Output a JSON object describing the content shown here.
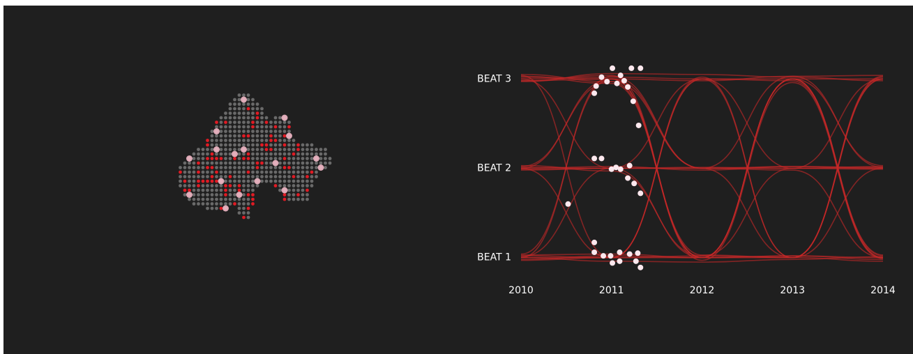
{
  "chart_data": {
    "type": "line",
    "x": [
      2010,
      2011,
      2012,
      2013,
      2014
    ],
    "xlim": [
      2010,
      2014
    ],
    "xticks": [
      2010,
      2011,
      2012,
      2013,
      2014
    ],
    "ylim": [
      0.6,
      3.4
    ],
    "yticks": [
      {
        "value": 1,
        "label": "BEAT 1"
      },
      {
        "value": 2,
        "label": "BEAT 2"
      },
      {
        "value": 3,
        "label": "BEAT 3"
      }
    ],
    "line_color": "#c62828",
    "series": [
      {
        "values": [
          3.02,
          3.0,
          1.0,
          3.0,
          1.02
        ]
      },
      {
        "values": [
          2.98,
          3.04,
          0.97,
          2.96,
          0.99
        ]
      },
      {
        "values": [
          3.05,
          2.97,
          2.0,
          3.03,
          2.01
        ]
      },
      {
        "values": [
          3.0,
          3.02,
          3.0,
          1.0,
          3.02
        ]
      },
      {
        "values": [
          2.97,
          3.06,
          3.05,
          3.02,
          2.98
        ]
      },
      {
        "values": [
          3.03,
          2.95,
          1.03,
          1.0,
          3.0
        ]
      },
      {
        "values": [
          2.0,
          3.0,
          2.0,
          2.02,
          2.0
        ]
      },
      {
        "values": [
          2.02,
          2.97,
          1.0,
          3.0,
          2.03
        ]
      },
      {
        "values": [
          1.98,
          2.0,
          2.01,
          2.0,
          1.99
        ]
      },
      {
        "values": [
          2.0,
          2.02,
          1.98,
          2.02,
          2.01
        ]
      },
      {
        "values": [
          2.01,
          2.0,
          3.0,
          2.0,
          3.0
        ]
      },
      {
        "values": [
          1.99,
          2.0,
          2.0,
          1.98,
          1.0
        ]
      },
      {
        "values": [
          2.03,
          1.97,
          1.02,
          2.0,
          2.02
        ]
      },
      {
        "values": [
          1.0,
          3.03,
          2.0,
          1.0,
          2.0
        ]
      },
      {
        "values": [
          1.02,
          1.0,
          3.02,
          1.0,
          3.03
        ]
      },
      {
        "values": [
          0.98,
          1.02,
          1.0,
          3.0,
          1.0
        ]
      },
      {
        "values": [
          1.0,
          0.96,
          0.95,
          0.98,
          1.01
        ]
      },
      {
        "values": [
          1.03,
          1.04,
          1.0,
          1.02,
          0.98
        ]
      },
      {
        "values": [
          0.97,
          1.0,
          1.02,
          1.0,
          0.96
        ]
      },
      {
        "values": [
          1.01,
          2.0,
          1.0,
          1.0,
          3.0
        ]
      },
      {
        "values": [
          2.98,
          3.0,
          2.98,
          3.03,
          3.04
        ]
      },
      {
        "values": [
          3.04,
          1.0,
          3.0,
          2.98,
          1.0
        ]
      },
      {
        "values": [
          1.04,
          3.0,
          1.0,
          3.0,
          1.03
        ]
      },
      {
        "values": [
          2.0,
          1.0,
          1.0,
          1.02,
          1.0
        ]
      },
      {
        "values": [
          3.0,
          2.0,
          2.0,
          2.0,
          2.0
        ]
      },
      {
        "values": [
          1.0,
          1.0,
          3.0,
          3.0,
          3.0
        ]
      }
    ],
    "points": {
      "color": "#fde8ee",
      "x": [
        2010.81,
        2010.89,
        2011.01,
        2011.22,
        2011.32,
        2010.95,
        2011.06,
        2011.14,
        2011.18,
        2011.24,
        2011.3,
        2010.83,
        2011.1,
        2010.81,
        2010.89,
        2011.0,
        2011.1,
        2011.2,
        2011.18,
        2011.25,
        2011.32,
        2011.05,
        2010.52,
        2010.81,
        2010.81,
        2010.91,
        2011.01,
        2011.09,
        2011.09,
        2011.2,
        2011.29,
        2011.32,
        2011.27,
        2010.99
      ],
      "y": [
        2.84,
        3.02,
        3.12,
        3.12,
        3.12,
        2.97,
        2.95,
        2.98,
        2.91,
        2.75,
        2.48,
        2.92,
        3.04,
        2.11,
        2.11,
        1.99,
        1.99,
        2.03,
        1.89,
        1.83,
        1.72,
        2.01,
        1.6,
        1.17,
        1.06,
        1.02,
        0.94,
        1.06,
        0.96,
        1.04,
        1.05,
        0.89,
        0.96,
        1.02
      ]
    }
  }
}
